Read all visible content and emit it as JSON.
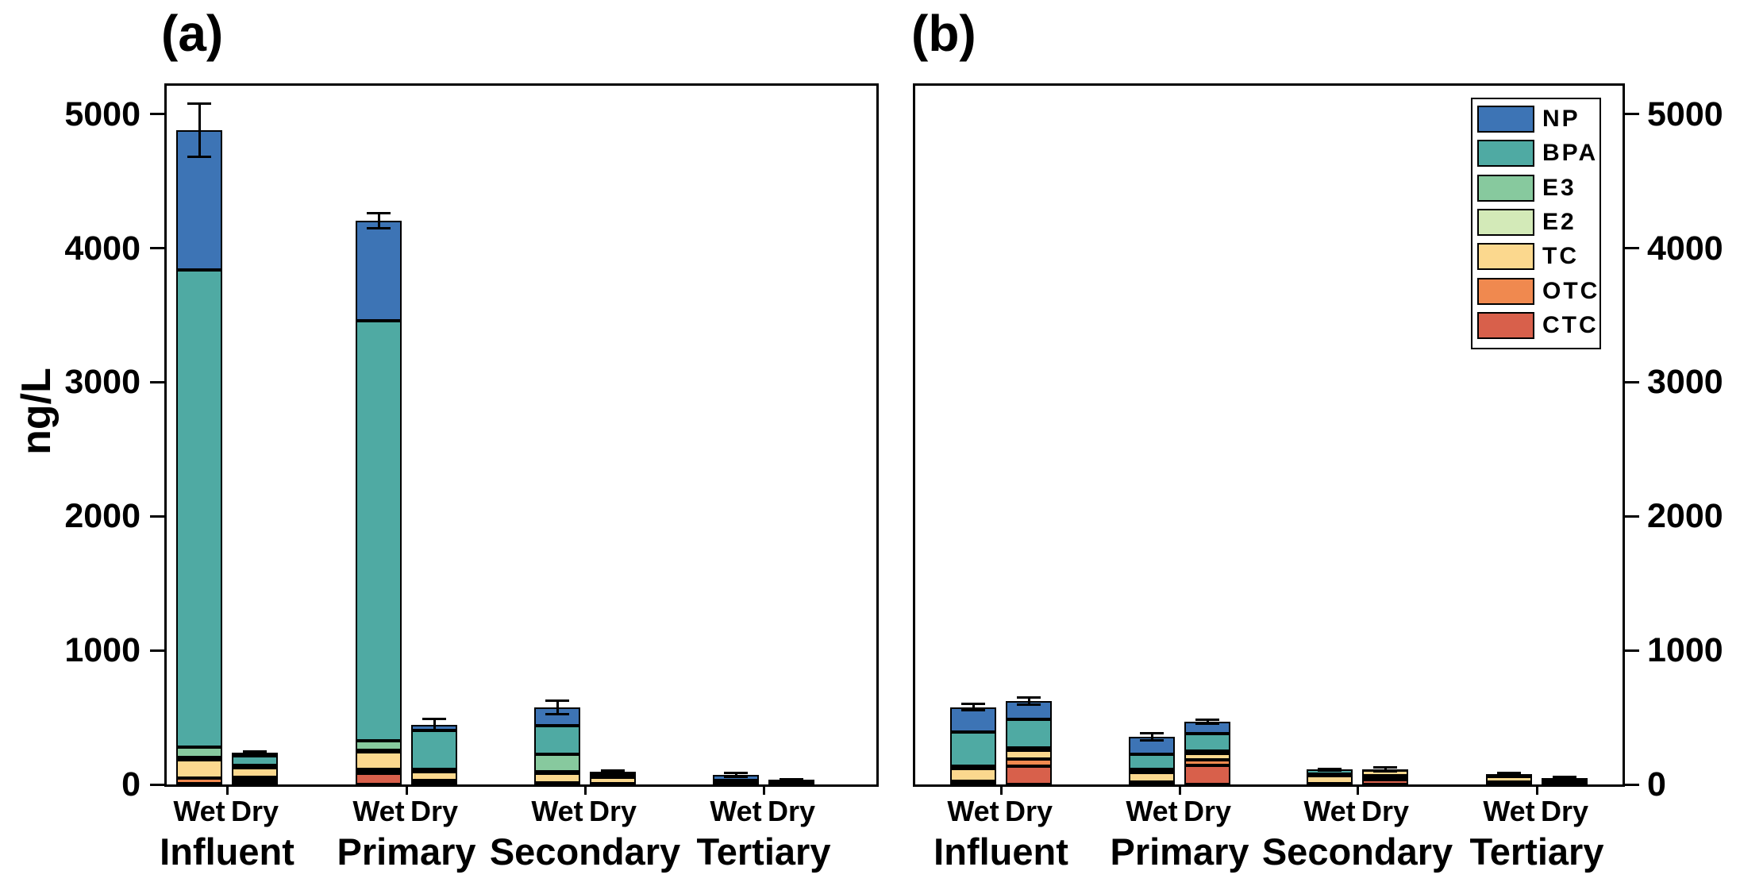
{
  "figure_title": "",
  "chart_data": {
    "type": "bar",
    "stacked": true,
    "unit": "ng/L",
    "ylim": [
      0,
      5230
    ],
    "yticks": [
      0,
      1000,
      2000,
      3000,
      4000,
      5000
    ],
    "grid": false,
    "legend_position": "top-right-of-panel-b",
    "legend": [
      "NP",
      "BPA",
      "E3",
      "E2",
      "TC",
      "OTC",
      "CTC"
    ],
    "stack_order_bottom_to_top": [
      "CTC",
      "OTC",
      "TC",
      "E2",
      "E3",
      "BPA",
      "NP"
    ],
    "series_colors": {
      "NP": "#3d74b5",
      "BPA": "#4faaa3",
      "E3": "#87c99e",
      "E2": "#d3eab8",
      "TC": "#fbd88e",
      "OTC": "#f0894f",
      "CTC": "#d8604b"
    },
    "error_bar_color": "#000000",
    "axis_color": "#000000",
    "panels": [
      {
        "title": "(a)",
        "ylabel": "ng/L",
        "axis_labels_side": "left",
        "groups": [
          {
            "name": "Influent",
            "bars": [
              {
                "condition": "Wet",
                "total": 4880,
                "error": 200,
                "segments": {
                  "CTC": 5,
                  "OTC": 40,
                  "TC": 140,
                  "E2": 15,
                  "E3": 80,
                  "BPA": 3560,
                  "NP": 1040
                }
              },
              {
                "condition": "Dry",
                "total": 235,
                "error": 12,
                "segments": {
                  "CTC": 18,
                  "OTC": 35,
                  "TC": 73,
                  "E2": 12,
                  "E3": 5,
                  "BPA": 70,
                  "NP": 22
                }
              }
            ]
          },
          {
            "name": "Primary",
            "bars": [
              {
                "condition": "Wet",
                "total": 4205,
                "error": 55,
                "segments": {
                  "CTC": 85,
                  "OTC": 30,
                  "TC": 125,
                  "E2": 12,
                  "E3": 73,
                  "BPA": 3135,
                  "NP": 745
                }
              },
              {
                "condition": "Dry",
                "total": 445,
                "error": 45,
                "segments": {
                  "CTC": 12,
                  "OTC": 20,
                  "TC": 60,
                  "E2": 15,
                  "E3": 8,
                  "BPA": 290,
                  "NP": 40
                }
              }
            ]
          },
          {
            "name": "Secondary",
            "bars": [
              {
                "condition": "Wet",
                "total": 573,
                "error": 50,
                "segments": {
                  "CTC": 5,
                  "OTC": 8,
                  "TC": 70,
                  "E2": 10,
                  "E3": 135,
                  "BPA": 210,
                  "NP": 135
                }
              },
              {
                "condition": "Dry",
                "total": 95,
                "error": 10,
                "segments": {
                  "CTC": 3,
                  "OTC": 5,
                  "TC": 45,
                  "E2": 5,
                  "E3": 5,
                  "BPA": 10,
                  "NP": 22
                }
              }
            ]
          },
          {
            "name": "Tertiary",
            "bars": [
              {
                "condition": "Wet",
                "total": 73,
                "error": 15,
                "segments": {
                  "CTC": 22,
                  "OTC": 3,
                  "TC": 3,
                  "E2": 0,
                  "E3": 0,
                  "BPA": 0,
                  "NP": 45
                }
              },
              {
                "condition": "Dry",
                "total": 34,
                "error": 5,
                "segments": {
                  "CTC": 3,
                  "OTC": 3,
                  "TC": 25,
                  "E2": 0,
                  "E3": 0,
                  "BPA": 3,
                  "NP": 0
                }
              }
            ]
          }
        ]
      },
      {
        "title": "(b)",
        "ylabel": "",
        "axis_labels_side": "right",
        "groups": [
          {
            "name": "Influent",
            "bars": [
              {
                "condition": "Wet",
                "total": 577,
                "error": 25,
                "segments": {
                  "CTC": 4,
                  "OTC": 20,
                  "TC": 95,
                  "E2": 8,
                  "E3": 12,
                  "BPA": 250,
                  "NP": 188
                }
              },
              {
                "condition": "Dry",
                "total": 622,
                "error": 24,
                "segments": {
                  "CTC": 135,
                  "OTC": 54,
                  "TC": 65,
                  "E2": 8,
                  "E3": 8,
                  "BPA": 218,
                  "NP": 134
                }
              }
            ]
          },
          {
            "name": "Primary",
            "bars": [
              {
                "condition": "Wet",
                "total": 356,
                "error": 28,
                "segments": {
                  "CTC": 8,
                  "OTC": 12,
                  "TC": 70,
                  "E2": 5,
                  "E3": 18,
                  "BPA": 115,
                  "NP": 128
                }
              },
              {
                "condition": "Dry",
                "total": 468,
                "error": 12,
                "segments": {
                  "CTC": 140,
                  "OTC": 41,
                  "TC": 49,
                  "E2": 8,
                  "E3": 8,
                  "BPA": 132,
                  "NP": 90
                }
              }
            ]
          },
          {
            "name": "Secondary",
            "bars": [
              {
                "condition": "Wet",
                "total": 111,
                "error": 6,
                "segments": {
                  "CTC": 3,
                  "OTC": 4,
                  "TC": 60,
                  "E2": 3,
                  "E3": 5,
                  "BPA": 36,
                  "NP": 0
                }
              },
              {
                "condition": "Dry",
                "total": 112,
                "error": 17,
                "segments": {
                  "CTC": 38,
                  "OTC": 26,
                  "TC": 43,
                  "E2": 0,
                  "E3": 3,
                  "BPA": 2,
                  "NP": 0
                }
              }
            ]
          },
          {
            "name": "Tertiary",
            "bars": [
              {
                "condition": "Wet",
                "total": 75,
                "error": 10,
                "segments": {
                  "CTC": 8,
                  "OTC": 7,
                  "TC": 45,
                  "E2": 0,
                  "E3": 0,
                  "BPA": 10,
                  "NP": 5
                }
              },
              {
                "condition": "Dry",
                "total": 50,
                "error": 8,
                "segments": {
                  "CTC": 5,
                  "OTC": 5,
                  "TC": 30,
                  "E2": 0,
                  "E3": 0,
                  "BPA": 5,
                  "NP": 5
                }
              }
            ]
          }
        ]
      }
    ]
  }
}
